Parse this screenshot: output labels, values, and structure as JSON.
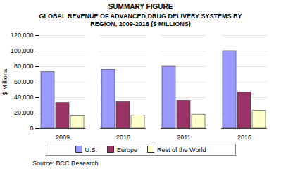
{
  "chart_data": {
    "type": "bar",
    "title": "SUMMARY FIGURE",
    "subtitle": "GLOBAL REVENUE OF ADVANCED DRUG DELIVERY SYSTEMS BY REGION, 2009-2016 ($ MILLIONS)",
    "caption": "Source: BCC Research",
    "ylabel": "$ Millions",
    "categories": [
      "2009",
      "2010",
      "2011",
      "2016"
    ],
    "series": [
      {
        "name": "U.S.",
        "color": "#9999ff",
        "values": [
          73000,
          76000,
          80000,
          100000
        ]
      },
      {
        "name": "Europe",
        "color": "#993366",
        "values": [
          33000,
          34000,
          36000,
          47000
        ]
      },
      {
        "name": "Rest of the World",
        "color": "#ffffcc",
        "values": [
          16000,
          17000,
          18000,
          23000
        ]
      }
    ],
    "ylim": [
      0,
      120000
    ],
    "yticks": [
      0,
      {
        "value": 20000,
        "label": "20,000"
      },
      {
        "value": 40000,
        "label": "40,000"
      },
      {
        "value": 60000,
        "label": "60,000"
      },
      {
        "value": 80000,
        "label": "80,000"
      },
      {
        "value": 100000,
        "label": "100,000"
      },
      {
        "value": 120000,
        "label": "120,000"
      }
    ],
    "grid": true,
    "legend": "bottom"
  }
}
